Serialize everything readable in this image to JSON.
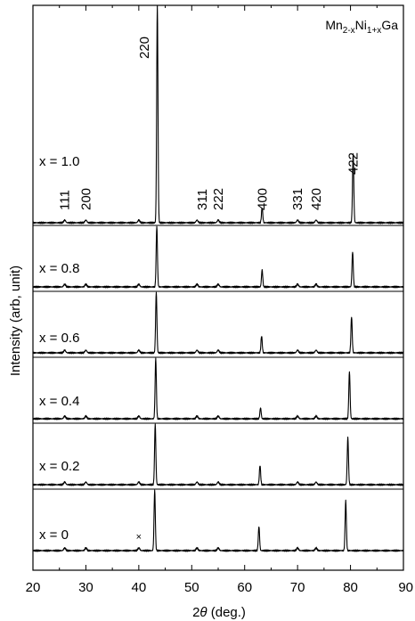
{
  "chart_data": {
    "type": "line",
    "title": "",
    "formula": {
      "base1": "Mn",
      "sub1": "2-x",
      "base2": "Ni",
      "sub2": "1+x",
      "base3": "Ga"
    },
    "xlabel_prefix": "2",
    "xlabel_symbol": "θ",
    "xlabel_suffix": " (deg.)",
    "ylabel": "Intensity (arb, unit)",
    "xlim": [
      20,
      90
    ],
    "xticks": [
      20,
      30,
      40,
      50,
      60,
      70,
      80,
      90
    ],
    "xtick_labels": [
      "20",
      "30",
      "40",
      "50",
      "60",
      "70",
      "80",
      "90"
    ],
    "series": [
      {
        "name": "x = 1.0",
        "x": 1.0,
        "peaks": [
          [
            43.5,
            1.0
          ],
          [
            63.3,
            0.07
          ],
          [
            80.5,
            0.32
          ]
        ]
      },
      {
        "name": "x = 0.8",
        "x": 0.8,
        "peaks": [
          [
            43.4,
            1.0
          ],
          [
            63.3,
            0.28
          ],
          [
            80.4,
            0.58
          ]
        ]
      },
      {
        "name": "x = 0.6",
        "x": 0.6,
        "peaks": [
          [
            43.3,
            1.0
          ],
          [
            63.2,
            0.28
          ],
          [
            80.2,
            0.6
          ]
        ]
      },
      {
        "name": "x = 0.4",
        "x": 0.4,
        "peaks": [
          [
            43.2,
            1.0
          ],
          [
            63.0,
            0.18
          ],
          [
            79.8,
            0.78
          ]
        ]
      },
      {
        "name": "x = 0.2",
        "x": 0.2,
        "peaks": [
          [
            43.1,
            1.0
          ],
          [
            62.9,
            0.32
          ],
          [
            79.5,
            0.78
          ]
        ]
      },
      {
        "name": "x = 0",
        "x": 0.0,
        "peaks": [
          [
            43.0,
            1.0
          ],
          [
            62.7,
            0.4
          ],
          [
            79.1,
            0.82
          ]
        ]
      }
    ],
    "hkl_labels": [
      {
        "text": "111",
        "x": 26.0
      },
      {
        "text": "200",
        "x": 30.0
      },
      {
        "text": "220",
        "x": 41.0
      },
      {
        "text": "311",
        "x": 52.0
      },
      {
        "text": "222",
        "x": 55.0
      },
      {
        "text": "400",
        "x": 63.3
      },
      {
        "text": "331",
        "x": 70.0
      },
      {
        "text": "420",
        "x": 73.5
      },
      {
        "text": "422",
        "x": 80.5
      }
    ],
    "impurity_marker": {
      "text": "×",
      "x": 40.0
    }
  }
}
